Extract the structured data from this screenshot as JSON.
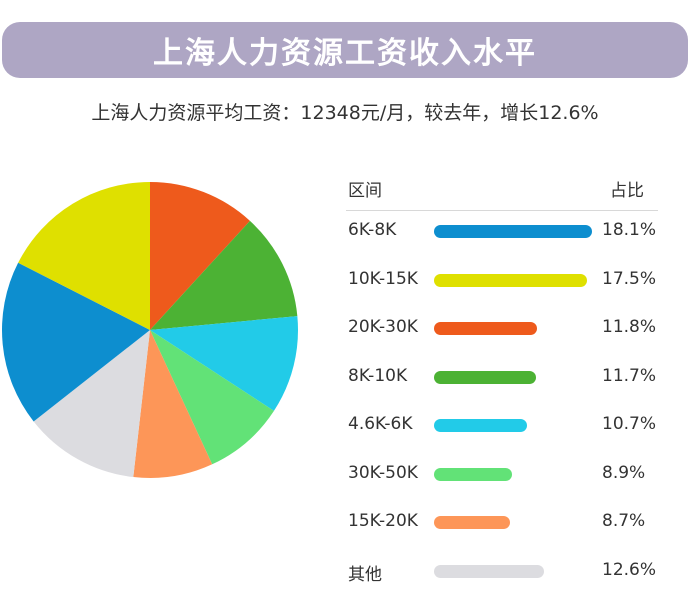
{
  "header": {
    "title": "上海人力资源工资收入水平",
    "subtitle": "上海人力资源平均工资：12348元/月，较去年，增长12.6%"
  },
  "table": {
    "col_range": "区间",
    "col_share": "占比"
  },
  "chart_data": {
    "type": "pie",
    "title": "上海人力资源工资收入水平",
    "categories": [
      "6K-8K",
      "10K-15K",
      "20K-30K",
      "8K-10K",
      "4.6K-6K",
      "30K-50K",
      "15K-20K",
      "其他"
    ],
    "values": [
      18.1,
      17.5,
      11.8,
      11.7,
      10.7,
      8.9,
      8.7,
      12.6
    ],
    "labels": [
      "18.1%",
      "17.5%",
      "11.8%",
      "11.7%",
      "10.7%",
      "8.9%",
      "8.7%",
      "12.6%"
    ],
    "colors": [
      "#0d8ecf",
      "#dfe000",
      "#ee5a1c",
      "#4cb234",
      "#22cbe8",
      "#62e277",
      "#fd9658",
      "#dcdce0"
    ],
    "pie_order": [
      "20K-30K",
      "8K-10K",
      "4.6K-6K",
      "30K-50K",
      "15K-20K",
      "其他",
      "6K-8K",
      "10K-15K"
    ],
    "unit": "%"
  }
}
